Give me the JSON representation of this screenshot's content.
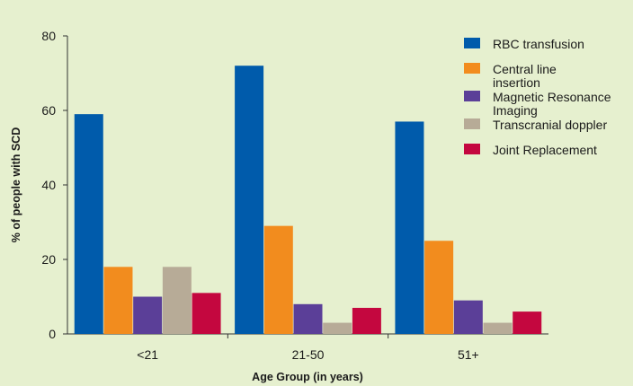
{
  "chart_data": {
    "type": "bar",
    "title": "",
    "xlabel": "Age Group (in years)",
    "ylabel": "% of people with SCD",
    "categories": [
      "<21",
      "21-50",
      "51+"
    ],
    "ylim": [
      0,
      80
    ],
    "yticks": [
      0,
      20,
      40,
      60,
      80
    ],
    "grid": false,
    "legend_position": "top-right",
    "series": [
      {
        "name": "RBC transfusion",
        "legend_lines": [
          "RBC transfusion"
        ],
        "color": "#005bab",
        "values": [
          59,
          72,
          57
        ]
      },
      {
        "name": "Central line insertion",
        "legend_lines": [
          "Central line",
          "insertion"
        ],
        "color": "#f28c1e",
        "values": [
          18,
          29,
          25
        ]
      },
      {
        "name": "Magnetic Resonance Imaging",
        "legend_lines": [
          "Magnetic Resonance",
          "Imaging"
        ],
        "color": "#5b3f98",
        "values": [
          10,
          8,
          9
        ]
      },
      {
        "name": "Transcranial doppler",
        "legend_lines": [
          "Transcranial doppler"
        ],
        "color": "#b7ab97",
        "values": [
          18,
          3,
          3
        ]
      },
      {
        "name": "Joint Replacement",
        "legend_lines": [
          "Joint Replacement"
        ],
        "color": "#c4073f",
        "values": [
          11,
          7,
          6
        ]
      }
    ]
  }
}
